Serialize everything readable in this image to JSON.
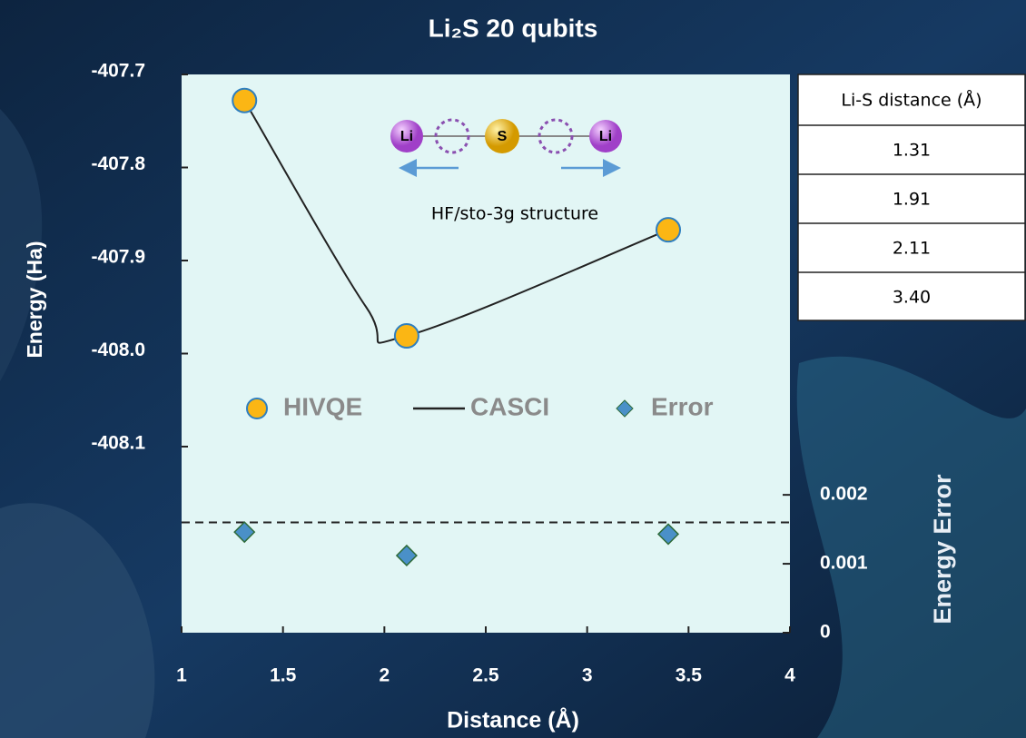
{
  "chart_data": {
    "type": "line",
    "title": "Li₂S   20 qubits",
    "x_label": "Distance (Å)",
    "y_label": "Energy (Ha)",
    "y2_label": "Energy Error",
    "xlim": [
      1,
      4
    ],
    "xticks": [
      1,
      1.5,
      2,
      2.5,
      3,
      3.5,
      4
    ],
    "ylim": [
      -408.3,
      -407.7
    ],
    "yticks": [
      -407.7,
      -407.8,
      -407.9,
      {
        "value": -408,
        "label": "-408.0"
      },
      -408.1
    ],
    "y2lim": [
      0,
      0.0081
    ],
    "y2ticks": [
      0,
      0.001,
      0.002
    ],
    "threshold": 0.0016,
    "series": [
      {
        "name": "HIVQE",
        "color": "#fbb614",
        "marker": "circle",
        "x": [
          1.31,
          2.11,
          3.4
        ],
        "values": [
          -407.728,
          -407.981,
          -407.867
        ]
      },
      {
        "name": "CASCI",
        "color": "#222222",
        "marker": "line",
        "x": [
          1.31,
          1.91,
          2.11,
          3.4
        ],
        "values": [
          -407.728,
          -407.95,
          -407.981,
          -407.867
        ]
      },
      {
        "name": "Error",
        "color": "#4a90c8",
        "marker": "diamond",
        "axis": "y2",
        "x": [
          1.31,
          2.11,
          3.4
        ],
        "values": [
          0.00146,
          0.00112,
          0.00143
        ]
      }
    ]
  },
  "diagram": {
    "atoms": [
      "Li",
      "S",
      "Li"
    ],
    "caption": "HF/sto-3g structure"
  },
  "table": {
    "header": "Li-S distance (Å)",
    "rows": [
      "1.31",
      "1.91",
      "2.11",
      "3.40"
    ]
  }
}
